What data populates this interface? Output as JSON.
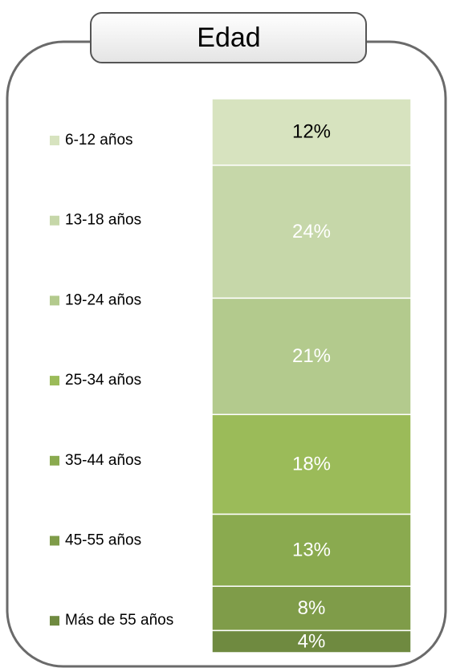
{
  "chart_data": {
    "type": "stacked_bar",
    "title": "Edad",
    "ylim": [
      0,
      100
    ],
    "series": [
      {
        "name": "6-12 años",
        "color": "#d7e3bf",
        "label_color": "#000000",
        "values": [
          12
        ],
        "value_labels": [
          "12%"
        ]
      },
      {
        "name": "13-18 años",
        "color": "#c6d7a9",
        "label_color": "#ffffff",
        "values": [
          24
        ],
        "value_labels": [
          "24%"
        ]
      },
      {
        "name": "19-24 años",
        "color": "#b3ca8d",
        "label_color": "#ffffff",
        "values": [
          21
        ],
        "value_labels": [
          "21%"
        ]
      },
      {
        "name": "25-34 años",
        "color": "#9bbb59",
        "label_color": "#ffffff",
        "values": [
          18
        ],
        "value_labels": [
          "18%"
        ]
      },
      {
        "name": "35-44 años",
        "color": "#8aaa4f",
        "label_color": "#ffffff",
        "values": [
          13
        ],
        "value_labels": [
          "13%"
        ]
      },
      {
        "name": "45-55 años",
        "color": "#7f9c49",
        "label_color": "#ffffff",
        "values": [
          8
        ],
        "value_labels": [
          "8%"
        ]
      },
      {
        "name": "Más de 55 años",
        "color": "#6f8a40",
        "label_color": "#ffffff",
        "values": [
          4
        ],
        "value_labels": [
          "4%"
        ]
      }
    ]
  }
}
